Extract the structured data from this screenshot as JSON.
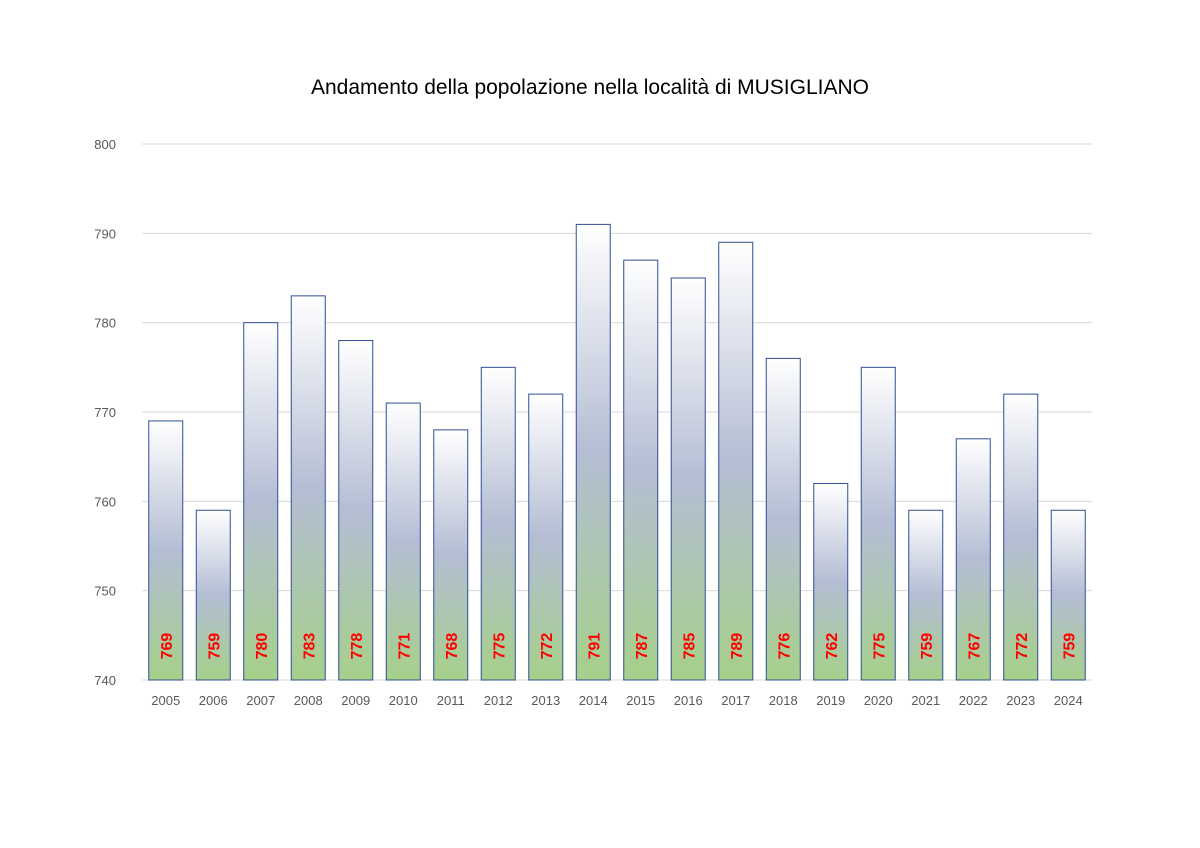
{
  "chart_data": {
    "type": "bar",
    "title": "Andamento della popolazione nella località di MUSIGLIANO",
    "xlabel": "",
    "ylabel": "",
    "categories": [
      "2005",
      "2006",
      "2007",
      "2008",
      "2009",
      "2010",
      "2011",
      "2012",
      "2013",
      "2014",
      "2015",
      "2016",
      "2017",
      "2018",
      "2019",
      "2020",
      "2021",
      "2022",
      "2023",
      "2024"
    ],
    "values": [
      769,
      759,
      780,
      783,
      778,
      771,
      768,
      775,
      772,
      791,
      787,
      785,
      789,
      776,
      762,
      775,
      759,
      767,
      772,
      759
    ],
    "ylim": [
      740,
      800
    ],
    "yticks": [
      740,
      750,
      760,
      770,
      780,
      790,
      800
    ],
    "grid": true,
    "legend": "none",
    "data_labels": "inside-bottom-rotated",
    "colors": {
      "bar_top": "#ffffff",
      "bar_mid": "#b4bdd4",
      "bar_bottom": "#a6d08a",
      "bar_border": "#2f4f95",
      "data_label": "#ff0000",
      "gridline": "#d9d9d9",
      "tick_text": "#595959"
    }
  }
}
